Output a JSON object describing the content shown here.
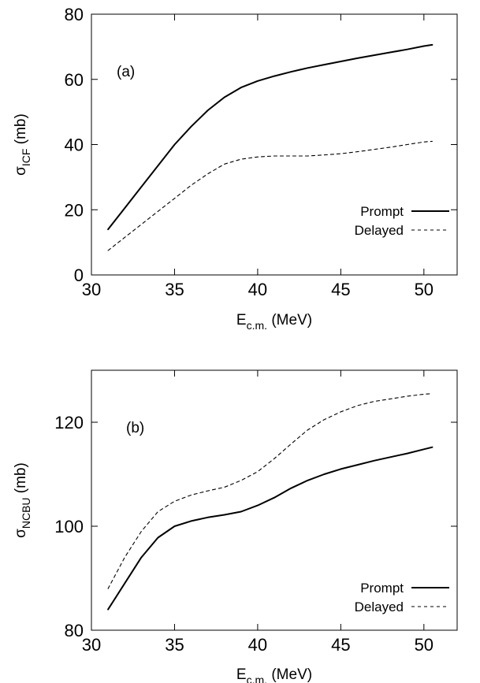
{
  "chart_data": [
    {
      "type": "line",
      "panel_label": "(a)",
      "xlabel": {
        "main": "E",
        "sub": "c.m.",
        "rest": " (MeV)"
      },
      "ylabel": {
        "main": "σ",
        "sub": "ICF",
        "rest": " (mb)"
      },
      "xlim": [
        30,
        52
      ],
      "ylim": [
        0,
        80
      ],
      "xticks": [
        30,
        35,
        40,
        45,
        50
      ],
      "yticks": [
        0,
        20,
        40,
        60,
        80
      ],
      "legend_position": "lower-right",
      "series": [
        {
          "name": "Prompt",
          "style": "solid",
          "color": "#000000",
          "x": [
            31,
            32,
            33,
            34,
            35,
            36,
            37,
            38,
            39,
            40,
            41,
            42,
            43,
            44,
            45,
            46,
            47,
            48,
            49,
            50,
            50.5
          ],
          "y": [
            14,
            20.5,
            27,
            33.5,
            40,
            45.5,
            50.5,
            54.5,
            57.5,
            59.5,
            61,
            62.3,
            63.5,
            64.5,
            65.5,
            66.5,
            67.4,
            68.3,
            69.2,
            70.2,
            70.6
          ]
        },
        {
          "name": "Delayed",
          "style": "dashed",
          "color": "#000000",
          "x": [
            31,
            32,
            33,
            34,
            35,
            36,
            37,
            38,
            39,
            40,
            41,
            42,
            43,
            44,
            45,
            46,
            47,
            48,
            49,
            50,
            50.5
          ],
          "y": [
            7.5,
            11.5,
            15.5,
            19.5,
            23.5,
            27.5,
            31,
            34,
            35.5,
            36.2,
            36.5,
            36.5,
            36.5,
            36.8,
            37.2,
            37.8,
            38.5,
            39.2,
            40,
            40.8,
            41
          ]
        }
      ]
    },
    {
      "type": "line",
      "panel_label": "(b)",
      "xlabel": {
        "main": "E",
        "sub": "c.m.",
        "rest": " (MeV)"
      },
      "ylabel": {
        "main": "σ",
        "sub": "NCBU",
        "rest": " (mb)"
      },
      "xlim": [
        30,
        52
      ],
      "ylim": [
        80,
        130
      ],
      "xticks": [
        30,
        35,
        40,
        45,
        50
      ],
      "yticks": [
        80,
        100,
        120
      ],
      "legend_position": "lower-right",
      "series": [
        {
          "name": "Prompt",
          "style": "solid",
          "color": "#000000",
          "x": [
            31,
            32,
            33,
            34,
            35,
            36,
            37,
            38,
            39,
            40,
            41,
            42,
            43,
            44,
            45,
            46,
            47,
            48,
            49,
            50,
            50.5
          ],
          "y": [
            84,
            89,
            94,
            97.8,
            100,
            101,
            101.7,
            102.2,
            102.8,
            104,
            105.5,
            107.3,
            108.8,
            110,
            111,
            111.8,
            112.6,
            113.3,
            114,
            114.8,
            115.2
          ]
        },
        {
          "name": "Delayed",
          "style": "dashed",
          "color": "#000000",
          "x": [
            31,
            32,
            33,
            34,
            35,
            36,
            37,
            38,
            39,
            40,
            41,
            42,
            43,
            44,
            45,
            46,
            47,
            48,
            49,
            50,
            50.5
          ],
          "y": [
            88,
            94,
            99,
            102.8,
            104.8,
            106,
            106.8,
            107.5,
            108.8,
            110.5,
            113,
            115.8,
            118.5,
            120.5,
            122,
            123.2,
            124,
            124.5,
            125,
            125.4,
            125.5
          ]
        }
      ]
    }
  ]
}
